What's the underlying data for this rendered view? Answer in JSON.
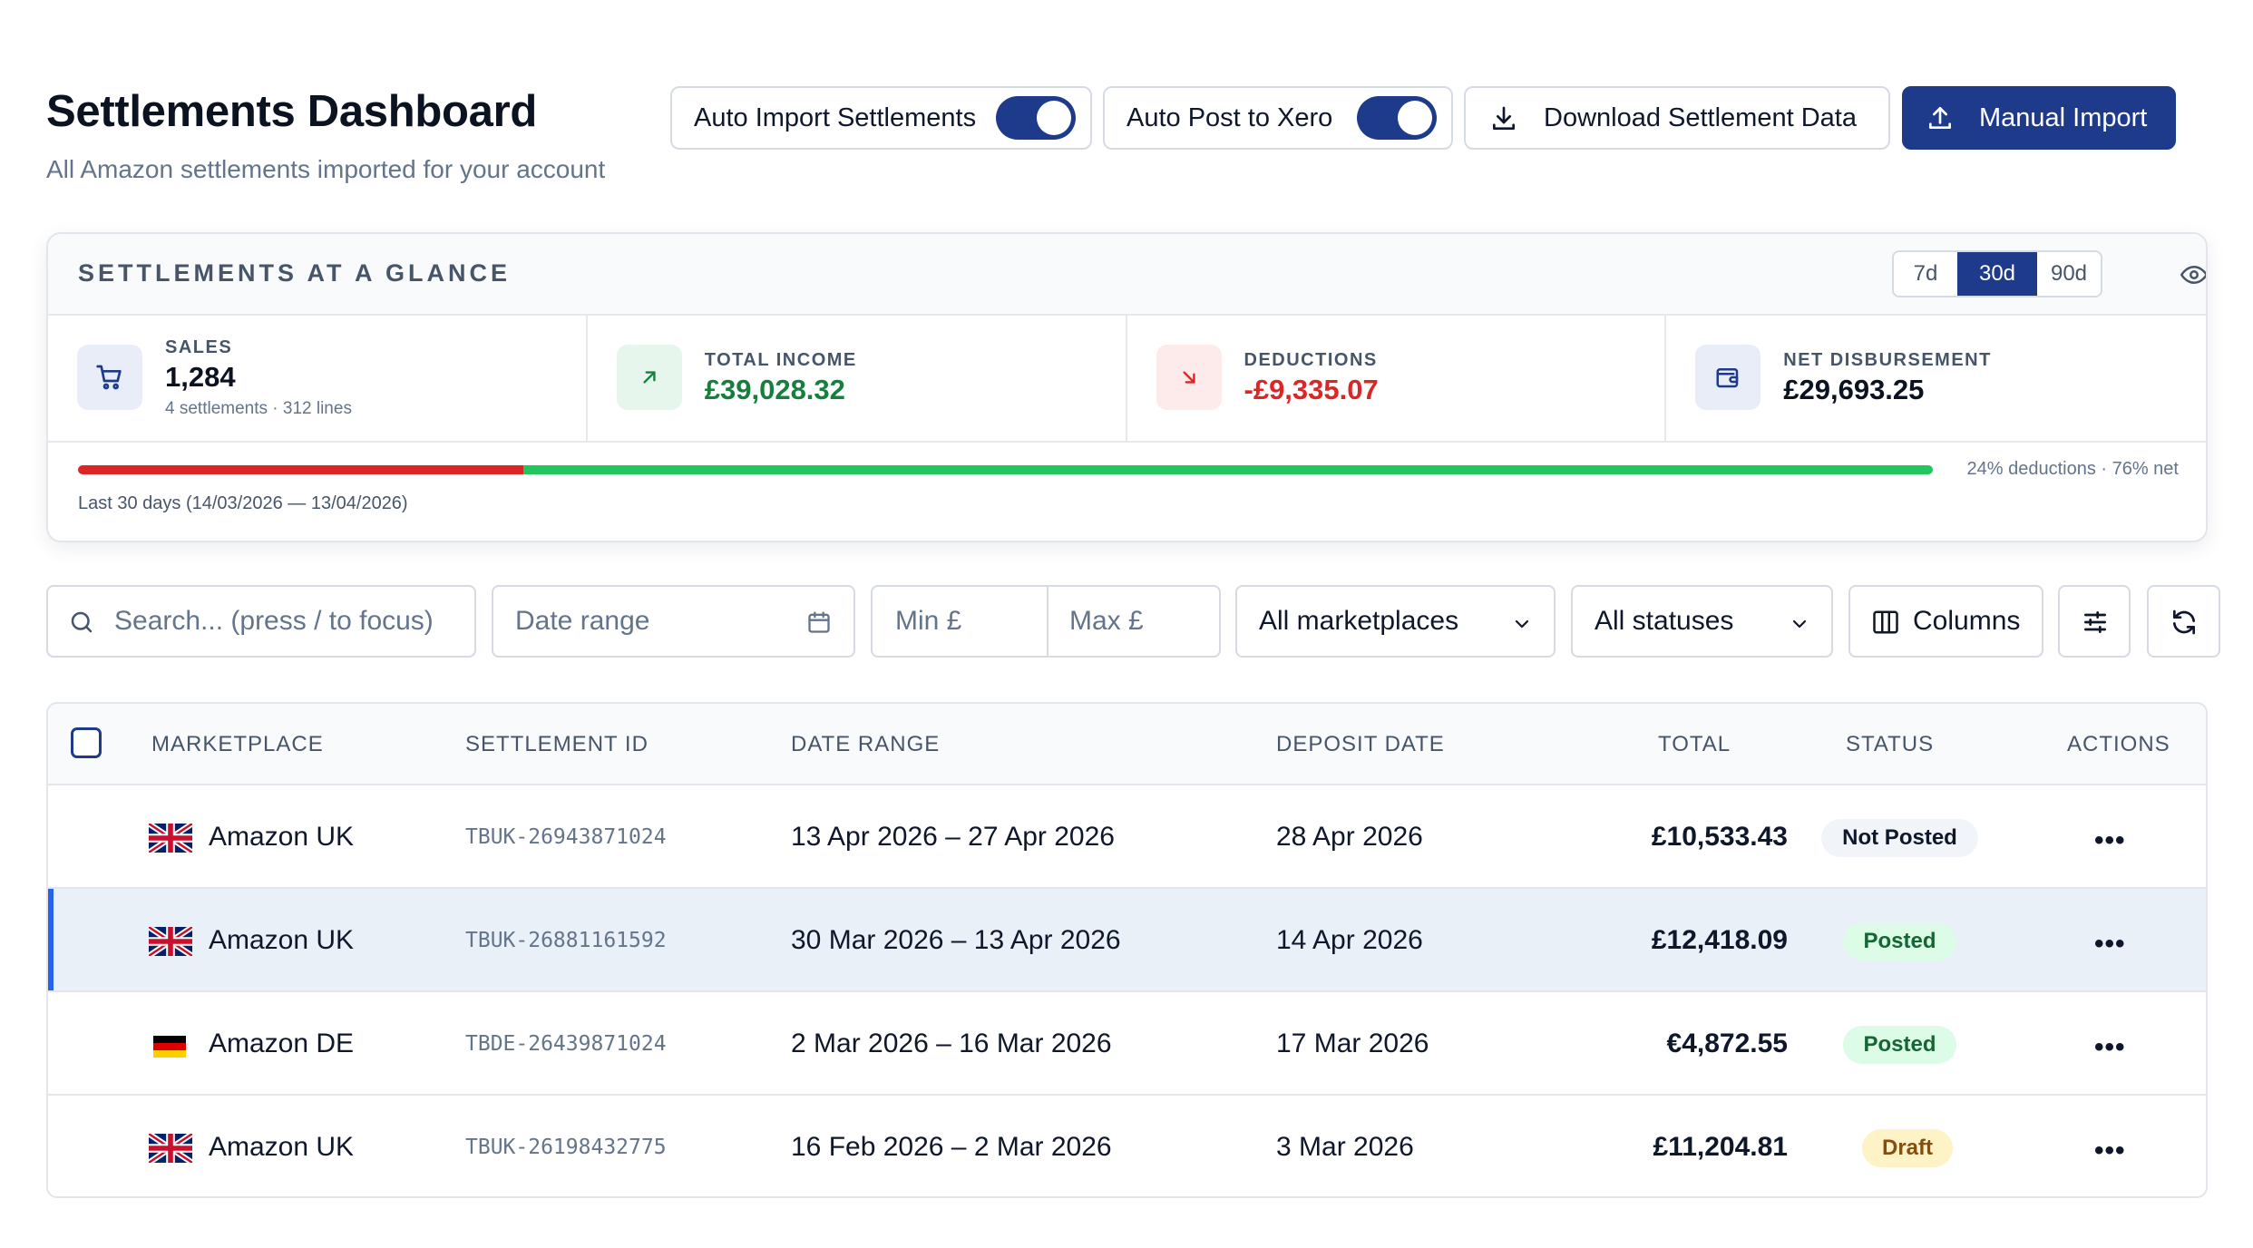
{
  "header": {
    "title": "Settlements Dashboard",
    "subtitle": "All Amazon settlements imported for your account",
    "auto_import_label": "Auto Import Settlements",
    "auto_import_on": true,
    "auto_post_label": "Auto Post to Xero",
    "auto_post_on": true,
    "download_label": "Download Settlement Data",
    "manual_import_label": "Manual Import"
  },
  "glance": {
    "title": "SETTLEMENTS AT A GLANCE",
    "ranges": [
      "7d",
      "30d",
      "90d"
    ],
    "active_range": "30d",
    "stats": [
      {
        "label": "SALES",
        "value": "1,284",
        "sub": "4 settlements · 312 lines",
        "icon": "cart-icon"
      },
      {
        "label": "TOTAL INCOME",
        "value": "£39,028.32",
        "icon": "arrow-up-right-icon"
      },
      {
        "label": "DEDUCTIONS",
        "value": "-£9,335.07",
        "icon": "arrow-down-right-icon"
      },
      {
        "label": "NET DISBURSEMENT",
        "value": "£29,693.25",
        "icon": "wallet-icon"
      }
    ],
    "deductions_pct": 24,
    "net_pct": 76,
    "bar_caption": "24% deductions · 76% net",
    "range_caption": "Last 30 days (14/03/2026 — 13/04/2026)"
  },
  "filters": {
    "search_placeholder": "Search... (press / to focus)",
    "date_placeholder": "Date range",
    "min_placeholder": "Min £",
    "max_placeholder": "Max £",
    "marketplace": "All marketplaces",
    "status": "All statuses",
    "columns_label": "Columns"
  },
  "table": {
    "headers": [
      "MARKETPLACE",
      "SETTLEMENT ID",
      "DATE RANGE",
      "DEPOSIT DATE",
      "TOTAL",
      "STATUS",
      "ACTIONS"
    ],
    "rows": [
      {
        "flag": "uk",
        "marketplace": "Amazon UK",
        "id": "TBUK-26943871024",
        "range": "13 Apr 2026 – 27 Apr 2026",
        "deposit": "28 Apr 2026",
        "total": "£10,533.43",
        "status": "Not Posted"
      },
      {
        "flag": "uk",
        "marketplace": "Amazon UK",
        "id": "TBUK-26881161592",
        "range": "30 Mar 2026 – 13 Apr 2026",
        "deposit": "14 Apr 2026",
        "total": "£12,418.09",
        "status": "Posted",
        "selected": true
      },
      {
        "flag": "de",
        "marketplace": "Amazon DE",
        "id": "TBDE-26439871024",
        "range": "2 Mar 2026 – 16 Mar 2026",
        "deposit": "17 Mar 2026",
        "total": "€4,872.55",
        "status": "Posted"
      },
      {
        "flag": "uk",
        "marketplace": "Amazon UK",
        "id": "TBUK-26198432775",
        "range": "16 Feb 2026 – 2 Mar 2026",
        "deposit": "3 Mar 2026",
        "total": "£11,204.81",
        "status": "Draft"
      }
    ]
  },
  "colors": {
    "primary": "#1e3a8a",
    "income": "#15803d",
    "deduction": "#dc2626",
    "posted_bg": "#dcfce7",
    "posted_fg": "#166534",
    "draft_bg": "#fef3c7",
    "draft_fg": "#854d0e",
    "notposted_bg": "#f1f5f9",
    "notposted_fg": "#0f172a"
  }
}
